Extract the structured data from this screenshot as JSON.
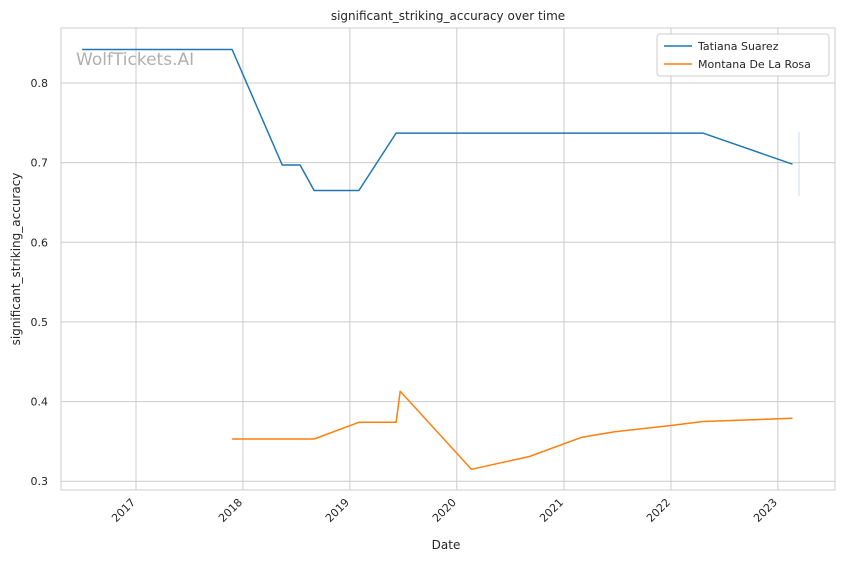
{
  "chart_data": {
    "type": "line",
    "title": "significant_striking_accuracy over time",
    "xlabel": "Date",
    "ylabel": "significant_striking_accuracy",
    "x_ticks": [
      "2017",
      "2018",
      "2019",
      "2020",
      "2021",
      "2022",
      "2023"
    ],
    "y_ticks": [
      0.3,
      0.4,
      0.5,
      0.6,
      0.7,
      0.8
    ],
    "xlim": [
      "2016-04-20",
      "2023-07-15"
    ],
    "ylim": [
      0.289,
      0.869
    ],
    "grid": true,
    "legend_position": "top-right",
    "watermark": "WolfTickets.AI",
    "series": [
      {
        "name": "Tatiana Suarez",
        "color": "#1f77b4",
        "points": [
          [
            "2016-07-01",
            0.842
          ],
          [
            "2017-11-25",
            0.842
          ],
          [
            "2018-05-15",
            0.697
          ],
          [
            "2018-07-15",
            0.697
          ],
          [
            "2018-09-01",
            0.665
          ],
          [
            "2019-02-01",
            0.665
          ],
          [
            "2019-06-08",
            0.737
          ],
          [
            "2022-04-20",
            0.737
          ],
          [
            "2023-02-20",
            0.698
          ]
        ]
      },
      {
        "name": "Montana De La Rosa",
        "color": "#ff7f0e",
        "points": [
          [
            "2017-11-25",
            0.353
          ],
          [
            "2018-09-01",
            0.353
          ],
          [
            "2019-02-01",
            0.374
          ],
          [
            "2019-06-08",
            0.374
          ],
          [
            "2019-06-22",
            0.413
          ],
          [
            "2020-02-20",
            0.315
          ],
          [
            "2020-09-05",
            0.331
          ],
          [
            "2021-03-01",
            0.355
          ],
          [
            "2021-06-20",
            0.362
          ],
          [
            "2022-01-01",
            0.37
          ],
          [
            "2022-04-20",
            0.375
          ],
          [
            "2023-02-20",
            0.379
          ]
        ]
      }
    ]
  }
}
